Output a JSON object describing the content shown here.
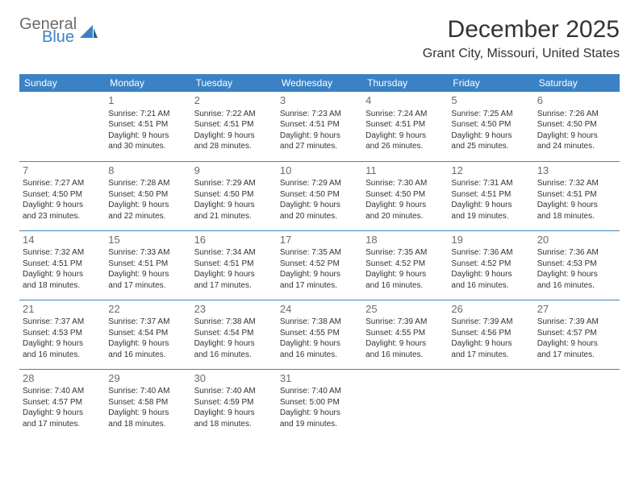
{
  "logo": {
    "line1": "General",
    "line2": "Blue"
  },
  "header": {
    "title": "December 2025",
    "location": "Grant City, Missouri, United States"
  },
  "colors": {
    "accent": "#3b82c4",
    "text": "#333333",
    "muted": "#6b6b6b",
    "bg": "#ffffff"
  },
  "calendar": {
    "days": [
      "Sunday",
      "Monday",
      "Tuesday",
      "Wednesday",
      "Thursday",
      "Friday",
      "Saturday"
    ],
    "weeks": [
      [
        null,
        {
          "n": "1",
          "sr": "Sunrise: 7:21 AM",
          "ss": "Sunset: 4:51 PM",
          "d1": "Daylight: 9 hours",
          "d2": "and 30 minutes."
        },
        {
          "n": "2",
          "sr": "Sunrise: 7:22 AM",
          "ss": "Sunset: 4:51 PM",
          "d1": "Daylight: 9 hours",
          "d2": "and 28 minutes."
        },
        {
          "n": "3",
          "sr": "Sunrise: 7:23 AM",
          "ss": "Sunset: 4:51 PM",
          "d1": "Daylight: 9 hours",
          "d2": "and 27 minutes."
        },
        {
          "n": "4",
          "sr": "Sunrise: 7:24 AM",
          "ss": "Sunset: 4:51 PM",
          "d1": "Daylight: 9 hours",
          "d2": "and 26 minutes."
        },
        {
          "n": "5",
          "sr": "Sunrise: 7:25 AM",
          "ss": "Sunset: 4:50 PM",
          "d1": "Daylight: 9 hours",
          "d2": "and 25 minutes."
        },
        {
          "n": "6",
          "sr": "Sunrise: 7:26 AM",
          "ss": "Sunset: 4:50 PM",
          "d1": "Daylight: 9 hours",
          "d2": "and 24 minutes."
        }
      ],
      [
        {
          "n": "7",
          "sr": "Sunrise: 7:27 AM",
          "ss": "Sunset: 4:50 PM",
          "d1": "Daylight: 9 hours",
          "d2": "and 23 minutes."
        },
        {
          "n": "8",
          "sr": "Sunrise: 7:28 AM",
          "ss": "Sunset: 4:50 PM",
          "d1": "Daylight: 9 hours",
          "d2": "and 22 minutes."
        },
        {
          "n": "9",
          "sr": "Sunrise: 7:29 AM",
          "ss": "Sunset: 4:50 PM",
          "d1": "Daylight: 9 hours",
          "d2": "and 21 minutes."
        },
        {
          "n": "10",
          "sr": "Sunrise: 7:29 AM",
          "ss": "Sunset: 4:50 PM",
          "d1": "Daylight: 9 hours",
          "d2": "and 20 minutes."
        },
        {
          "n": "11",
          "sr": "Sunrise: 7:30 AM",
          "ss": "Sunset: 4:50 PM",
          "d1": "Daylight: 9 hours",
          "d2": "and 20 minutes."
        },
        {
          "n": "12",
          "sr": "Sunrise: 7:31 AM",
          "ss": "Sunset: 4:51 PM",
          "d1": "Daylight: 9 hours",
          "d2": "and 19 minutes."
        },
        {
          "n": "13",
          "sr": "Sunrise: 7:32 AM",
          "ss": "Sunset: 4:51 PM",
          "d1": "Daylight: 9 hours",
          "d2": "and 18 minutes."
        }
      ],
      [
        {
          "n": "14",
          "sr": "Sunrise: 7:32 AM",
          "ss": "Sunset: 4:51 PM",
          "d1": "Daylight: 9 hours",
          "d2": "and 18 minutes."
        },
        {
          "n": "15",
          "sr": "Sunrise: 7:33 AM",
          "ss": "Sunset: 4:51 PM",
          "d1": "Daylight: 9 hours",
          "d2": "and 17 minutes."
        },
        {
          "n": "16",
          "sr": "Sunrise: 7:34 AM",
          "ss": "Sunset: 4:51 PM",
          "d1": "Daylight: 9 hours",
          "d2": "and 17 minutes."
        },
        {
          "n": "17",
          "sr": "Sunrise: 7:35 AM",
          "ss": "Sunset: 4:52 PM",
          "d1": "Daylight: 9 hours",
          "d2": "and 17 minutes."
        },
        {
          "n": "18",
          "sr": "Sunrise: 7:35 AM",
          "ss": "Sunset: 4:52 PM",
          "d1": "Daylight: 9 hours",
          "d2": "and 16 minutes."
        },
        {
          "n": "19",
          "sr": "Sunrise: 7:36 AM",
          "ss": "Sunset: 4:52 PM",
          "d1": "Daylight: 9 hours",
          "d2": "and 16 minutes."
        },
        {
          "n": "20",
          "sr": "Sunrise: 7:36 AM",
          "ss": "Sunset: 4:53 PM",
          "d1": "Daylight: 9 hours",
          "d2": "and 16 minutes."
        }
      ],
      [
        {
          "n": "21",
          "sr": "Sunrise: 7:37 AM",
          "ss": "Sunset: 4:53 PM",
          "d1": "Daylight: 9 hours",
          "d2": "and 16 minutes."
        },
        {
          "n": "22",
          "sr": "Sunrise: 7:37 AM",
          "ss": "Sunset: 4:54 PM",
          "d1": "Daylight: 9 hours",
          "d2": "and 16 minutes."
        },
        {
          "n": "23",
          "sr": "Sunrise: 7:38 AM",
          "ss": "Sunset: 4:54 PM",
          "d1": "Daylight: 9 hours",
          "d2": "and 16 minutes."
        },
        {
          "n": "24",
          "sr": "Sunrise: 7:38 AM",
          "ss": "Sunset: 4:55 PM",
          "d1": "Daylight: 9 hours",
          "d2": "and 16 minutes."
        },
        {
          "n": "25",
          "sr": "Sunrise: 7:39 AM",
          "ss": "Sunset: 4:55 PM",
          "d1": "Daylight: 9 hours",
          "d2": "and 16 minutes."
        },
        {
          "n": "26",
          "sr": "Sunrise: 7:39 AM",
          "ss": "Sunset: 4:56 PM",
          "d1": "Daylight: 9 hours",
          "d2": "and 17 minutes."
        },
        {
          "n": "27",
          "sr": "Sunrise: 7:39 AM",
          "ss": "Sunset: 4:57 PM",
          "d1": "Daylight: 9 hours",
          "d2": "and 17 minutes."
        }
      ],
      [
        {
          "n": "28",
          "sr": "Sunrise: 7:40 AM",
          "ss": "Sunset: 4:57 PM",
          "d1": "Daylight: 9 hours",
          "d2": "and 17 minutes."
        },
        {
          "n": "29",
          "sr": "Sunrise: 7:40 AM",
          "ss": "Sunset: 4:58 PM",
          "d1": "Daylight: 9 hours",
          "d2": "and 18 minutes."
        },
        {
          "n": "30",
          "sr": "Sunrise: 7:40 AM",
          "ss": "Sunset: 4:59 PM",
          "d1": "Daylight: 9 hours",
          "d2": "and 18 minutes."
        },
        {
          "n": "31",
          "sr": "Sunrise: 7:40 AM",
          "ss": "Sunset: 5:00 PM",
          "d1": "Daylight: 9 hours",
          "d2": "and 19 minutes."
        },
        null,
        null,
        null
      ]
    ]
  }
}
